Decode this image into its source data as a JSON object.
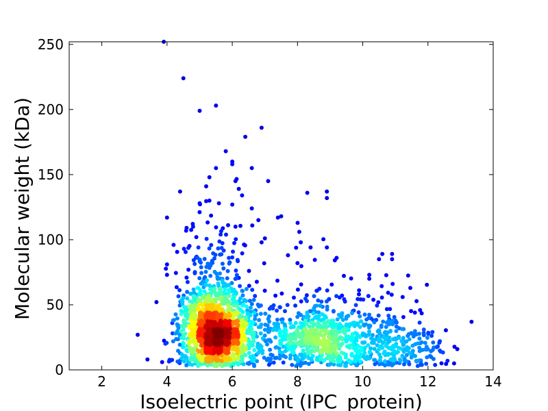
{
  "chart_data": {
    "type": "scatter",
    "title": "",
    "xlabel": "Isoelectric point (IPC_protein)",
    "ylabel": "Molecular weight (kDa)",
    "xlim": [
      1,
      14
    ],
    "ylim": [
      0,
      252
    ],
    "xticks": [
      "2",
      "4",
      "6",
      "8",
      "10",
      "12",
      "14"
    ],
    "xtick_values": [
      2,
      4,
      6,
      8,
      10,
      12,
      14
    ],
    "yticks": [
      "0",
      "50",
      "100",
      "150",
      "200",
      "250"
    ],
    "ytick_values": [
      0,
      50,
      100,
      150,
      200,
      250
    ],
    "grid": false,
    "legend": "none",
    "colormap": "jet (point density)",
    "colors": {
      "low_density": "#00008b",
      "mid_density": "#00ffff",
      "high_density": "#ff0000",
      "peak": "#800000"
    },
    "clusters": [
      {
        "center_x": 5.5,
        "center_y": 25,
        "spread_x": 0.55,
        "spread_y": 18,
        "weight": 0.62
      },
      {
        "center_x": 8.7,
        "center_y": 20,
        "spread_x": 0.9,
        "spread_y": 14,
        "weight": 0.28
      },
      {
        "center_x": 11.0,
        "center_y": 15,
        "spread_x": 0.8,
        "spread_y": 12,
        "weight": 0.1
      }
    ],
    "outliers": [
      {
        "x": 3.9,
        "y": 252
      },
      {
        "x": 4.5,
        "y": 224
      },
      {
        "x": 5.0,
        "y": 199
      },
      {
        "x": 5.5,
        "y": 203
      },
      {
        "x": 6.9,
        "y": 186
      },
      {
        "x": 6.4,
        "y": 179
      },
      {
        "x": 5.8,
        "y": 168
      },
      {
        "x": 6.0,
        "y": 160
      },
      {
        "x": 6.0,
        "y": 158
      },
      {
        "x": 6.6,
        "y": 155
      },
      {
        "x": 5.5,
        "y": 155
      },
      {
        "x": 5.3,
        "y": 148
      },
      {
        "x": 7.1,
        "y": 145
      },
      {
        "x": 6.1,
        "y": 145
      },
      {
        "x": 5.2,
        "y": 141
      },
      {
        "x": 6.2,
        "y": 139
      },
      {
        "x": 6.3,
        "y": 134
      },
      {
        "x": 4.4,
        "y": 137
      },
      {
        "x": 8.9,
        "y": 137
      },
      {
        "x": 8.3,
        "y": 136
      },
      {
        "x": 8.9,
        "y": 132
      },
      {
        "x": 5.3,
        "y": 130
      },
      {
        "x": 5.0,
        "y": 128
      },
      {
        "x": 6.0,
        "y": 127
      },
      {
        "x": 6.6,
        "y": 124
      },
      {
        "x": 7.5,
        "y": 118
      },
      {
        "x": 7.4,
        "y": 117
      },
      {
        "x": 4.0,
        "y": 117
      },
      {
        "x": 6.8,
        "y": 115
      },
      {
        "x": 4.8,
        "y": 110
      },
      {
        "x": 4.6,
        "y": 109
      },
      {
        "x": 6.1,
        "y": 110
      },
      {
        "x": 7.0,
        "y": 101
      },
      {
        "x": 8.1,
        "y": 98
      },
      {
        "x": 6.9,
        "y": 98
      },
      {
        "x": 4.2,
        "y": 96
      },
      {
        "x": 8.9,
        "y": 94
      },
      {
        "x": 8.4,
        "y": 94
      },
      {
        "x": 10.9,
        "y": 89
      },
      {
        "x": 10.6,
        "y": 89
      },
      {
        "x": 10.5,
        "y": 85
      },
      {
        "x": 10.9,
        "y": 85
      },
      {
        "x": 9.2,
        "y": 86
      },
      {
        "x": 8.0,
        "y": 82
      },
      {
        "x": 4.0,
        "y": 81
      },
      {
        "x": 4.0,
        "y": 73
      },
      {
        "x": 10.2,
        "y": 73
      },
      {
        "x": 10.2,
        "y": 70
      },
      {
        "x": 3.1,
        "y": 27
      },
      {
        "x": 12.9,
        "y": 16
      },
      {
        "x": 12.6,
        "y": 7
      },
      {
        "x": 12.8,
        "y": 5
      },
      {
        "x": 3.4,
        "y": 8
      },
      {
        "x": 12.3,
        "y": 18
      },
      {
        "x": 11.6,
        "y": 44
      },
      {
        "x": 11.5,
        "y": 28
      }
    ]
  }
}
